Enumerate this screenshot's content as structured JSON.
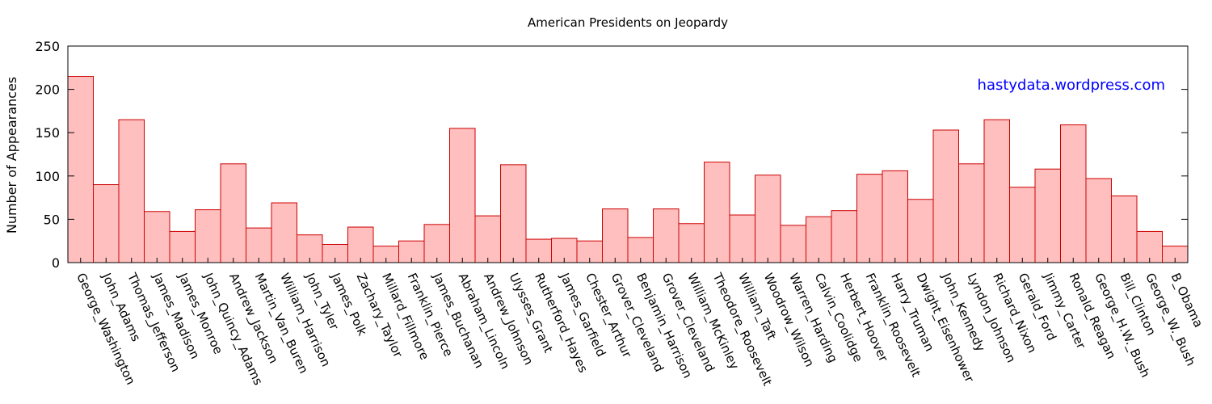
{
  "chart_data": {
    "type": "bar",
    "title": "American Presidents on Jeopardy",
    "xlabel": "",
    "ylabel": "Number of Appearances",
    "ylim": [
      0,
      250
    ],
    "yticks": [
      0,
      50,
      100,
      150,
      200,
      250
    ],
    "grid": false,
    "watermark": "hastydata.wordpress.com",
    "colors": {
      "bar_fill": "#ffbfbf",
      "bar_stroke": "#cc0000",
      "watermark": "#0000ff"
    },
    "categories": [
      "George_Washington",
      "John_Adams",
      "Thomas_Jefferson",
      "James_Madison",
      "James_Monroe",
      "John_Quincy_Adams",
      "Andrew_Jackson",
      "Martin_Van_Buren",
      "William_Harrison",
      "John_Tyler",
      "James_Polk",
      "Zachary_Taylor",
      "Millard_Fillmore",
      "Franklin_Pierce",
      "James_Buchanan",
      "Abraham_Lincoln",
      "Andrew_Johnson",
      "Ulysses_Grant",
      "Rutherford_Hayes",
      "James_Garfield",
      "Chester_Arthur",
      "Grover_Cleveland",
      "Benjamin_Harrison",
      "Grover_Cleveland",
      "William_McKinley",
      "Theodore_Roosevelt",
      "William_Taft",
      "Woodrow_Wilson",
      "Warren_Harding",
      "Calvin_Coolidge",
      "Herbert_Hoover",
      "Franklin_Roosevelt",
      "Harry_Truman",
      "Dwight_Eisenhower",
      "John_Kennedy",
      "Lyndon_Johnson",
      "Richard_Nixon",
      "Gerald_Ford",
      "Jimmy_Carter",
      "Ronald_Reagan",
      "George_H.W._Bush",
      "Bill_Clinton",
      "George_W._Bush",
      "B_Obama"
    ],
    "values": [
      215,
      90,
      165,
      59,
      36,
      61,
      114,
      40,
      69,
      32,
      21,
      41,
      19,
      25,
      44,
      155,
      54,
      113,
      27,
      28,
      25,
      62,
      29,
      62,
      45,
      116,
      55,
      101,
      43,
      53,
      60,
      102,
      106,
      73,
      153,
      114,
      165,
      87,
      108,
      159,
      97,
      77,
      36,
      19
    ]
  }
}
